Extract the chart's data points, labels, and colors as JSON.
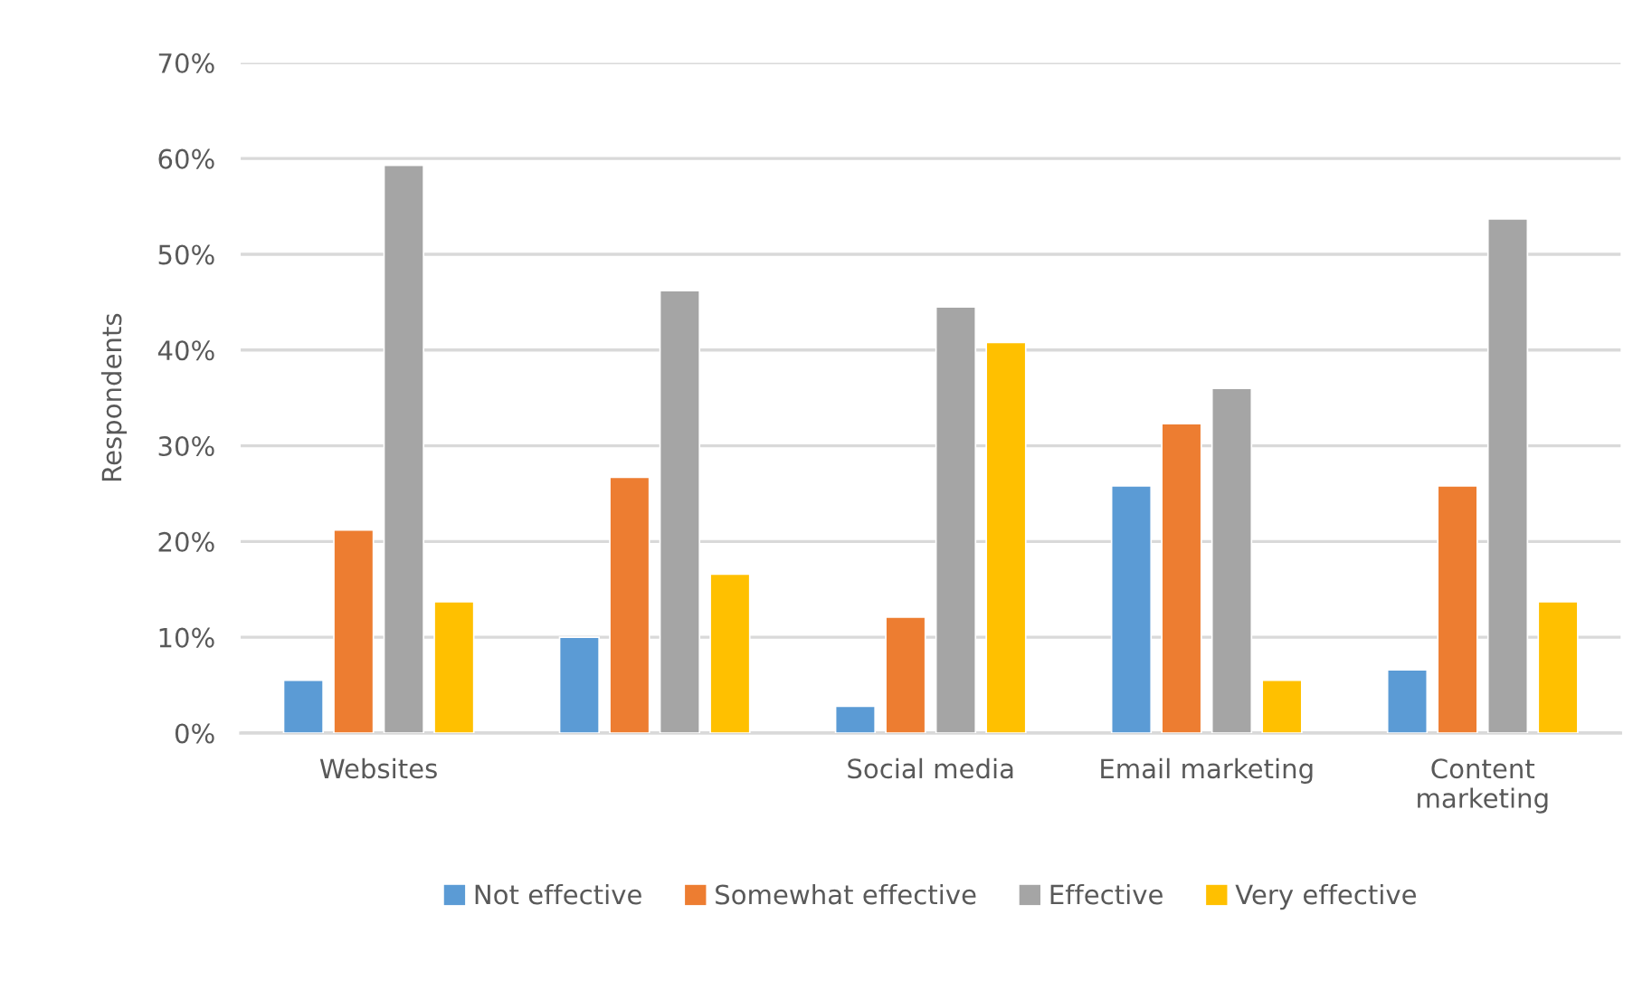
{
  "chart_data": {
    "type": "bar",
    "ylabel": "Respondents",
    "categories": [
      "Websites",
      null,
      "Social media",
      "Email marketing",
      "Content\nmarketing"
    ],
    "series": [
      {
        "name": "Not effective",
        "color": "#5b9bd5",
        "values": [
          5.5,
          10.0,
          2.8,
          25.8,
          6.6
        ]
      },
      {
        "name": "Somewhat effective",
        "color": "#ed7d31",
        "values": [
          21.2,
          26.7,
          12.1,
          32.3,
          25.8
        ]
      },
      {
        "name": "Effective",
        "color": "#a5a5a5",
        "values": [
          59.3,
          46.2,
          44.5,
          36.0,
          53.7
        ]
      },
      {
        "name": "Very effective",
        "color": "#ffc000",
        "values": [
          13.7,
          16.6,
          40.8,
          5.5,
          13.7
        ]
      }
    ],
    "ylim": [
      0,
      70
    ],
    "yticks": [
      {
        "value": 0,
        "label": "0%"
      },
      {
        "value": 10,
        "label": "10%"
      },
      {
        "value": 20,
        "label": "20%"
      },
      {
        "value": 30,
        "label": "30%"
      },
      {
        "value": 40,
        "label": "40%"
      },
      {
        "value": 50,
        "label": "50%"
      },
      {
        "value": 60,
        "label": "60%"
      },
      {
        "value": 70,
        "label": "70%"
      }
    ],
    "grid": "y",
    "legend": "bottom"
  }
}
